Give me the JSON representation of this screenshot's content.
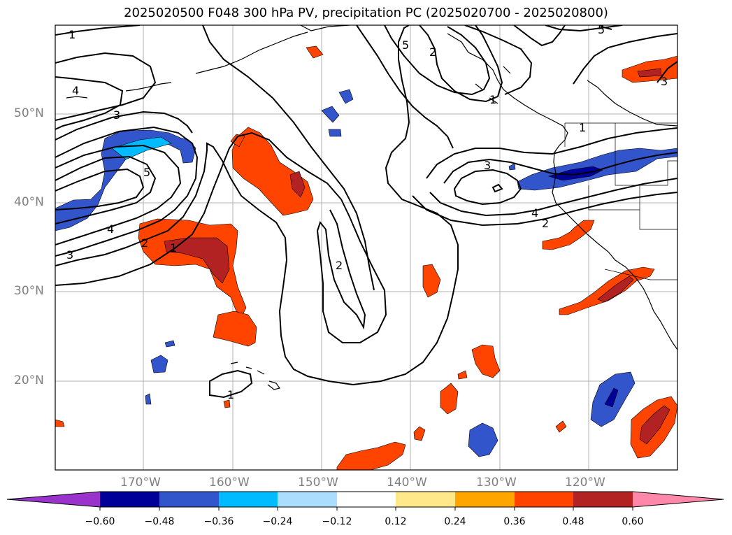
{
  "title": "2025020500 F048 300 hPa PV, precipitation PC (2025020700 - 2025020800)",
  "latitude_labels": [
    "50°N",
    "40°N",
    "30°N",
    "20°N"
  ],
  "longitude_labels": [
    "170°W",
    "160°W",
    "150°W",
    "140°W",
    "130°W",
    "120°W"
  ],
  "contour_labels": [
    "1",
    "2",
    "3",
    "4",
    "5",
    "1",
    "2",
    "3",
    "4",
    "5",
    "2",
    "1",
    "3",
    "4",
    "2",
    "1",
    "5",
    "3",
    "1",
    "2",
    "4"
  ],
  "colorbar": {
    "tick_labels": [
      "−0.60",
      "−0.48",
      "−0.36",
      "−0.24",
      "−0.12",
      "0.12",
      "0.24",
      "0.36",
      "0.48",
      "0.60"
    ],
    "colors": [
      "#9933cc",
      "#000099",
      "#3355cc",
      "#00bbff",
      "#aaddff",
      "#ffffff",
      "#ffe88a",
      "#ffa500",
      "#ff4400",
      "#b22222",
      "#ff88aa"
    ]
  },
  "fill_colors": {
    "positive_light": "#ffe88a",
    "positive_mid": "#ff4400",
    "positive_strong": "#b22222",
    "negative_light": "#aaddff",
    "negative_mid": "#3355cc",
    "negative_strong": "#000099"
  }
}
